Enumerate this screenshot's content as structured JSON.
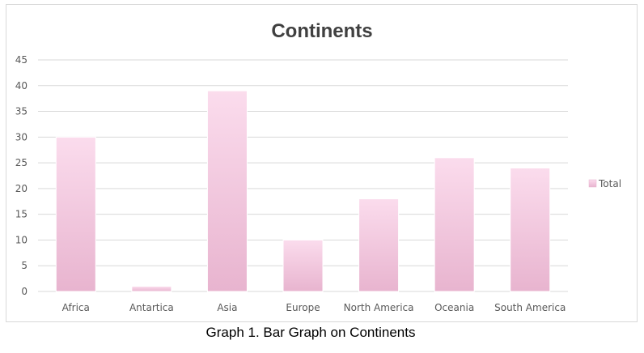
{
  "chart_data": {
    "type": "bar",
    "title": "Continents",
    "categories": [
      "Africa",
      "Antartica",
      "Asia",
      "Europe",
      "North America",
      "Oceania",
      "South America"
    ],
    "series": [
      {
        "name": "Total",
        "values": [
          30,
          1,
          39,
          10,
          18,
          26,
          24
        ]
      }
    ],
    "y_ticks": [
      "0",
      "5",
      "10",
      "15",
      "20",
      "25",
      "30",
      "35",
      "40",
      "45"
    ],
    "ylim": [
      0,
      45
    ],
    "grid": true,
    "legend_position": "right",
    "colors": {
      "bar_top": "#fbdced",
      "bar_bottom": "#e8b4cf",
      "bar_edge": "#ffffff",
      "grid": "#d9d9d9",
      "axis_text": "#595959",
      "title": "#404040"
    }
  },
  "caption": "Graph 1. Bar Graph on Continents"
}
